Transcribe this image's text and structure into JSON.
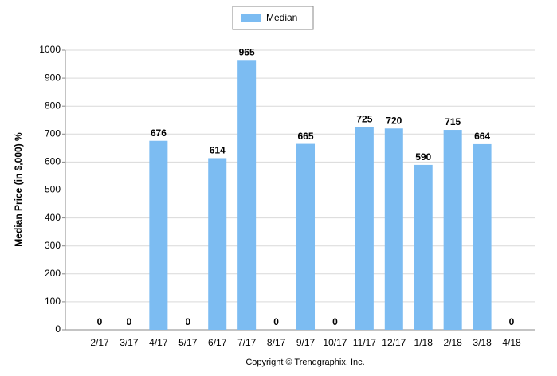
{
  "chart_data": {
    "type": "bar",
    "y_label": "Median Price (in $,000) %",
    "footer": "Copyright © Trendgraphix, Inc.",
    "categories": [
      "2/17",
      "3/17",
      "4/17",
      "5/17",
      "6/17",
      "7/17",
      "8/17",
      "9/17",
      "10/17",
      "11/17",
      "12/17",
      "1/18",
      "2/18",
      "3/18",
      "4/18"
    ],
    "series": [
      {
        "name": "Median",
        "color": "#7cbcf2",
        "values": [
          0,
          0,
          676,
          0,
          614,
          965,
          0,
          665,
          0,
          725,
          720,
          590,
          715,
          664,
          0
        ]
      }
    ],
    "ylim": [
      0,
      1000
    ],
    "yticks": [
      0,
      100,
      200,
      300,
      400,
      500,
      600,
      700,
      800,
      900,
      1000
    ],
    "grid": true,
    "legend": "top"
  }
}
